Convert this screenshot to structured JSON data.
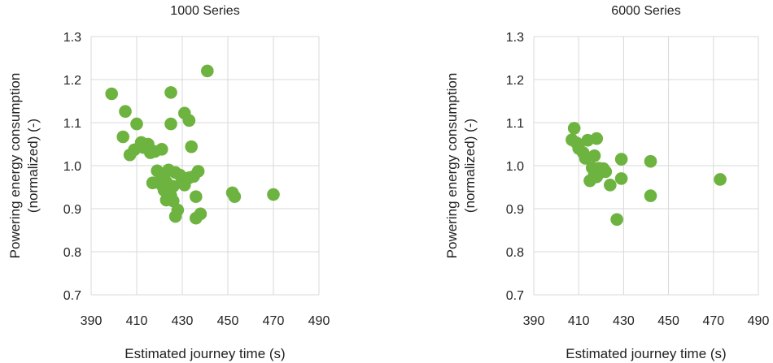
{
  "chart_data": [
    {
      "type": "scatter",
      "title": "1000 Series",
      "xlabel": "Estimated journey time (s)",
      "ylabel": [
        "Powering energy consumption",
        "(normalized) (-)"
      ],
      "xlim": [
        390,
        490
      ],
      "ylim": [
        0.7,
        1.3
      ],
      "xticks": [
        "390",
        "410",
        "430",
        "450",
        "470",
        "490"
      ],
      "yticks": [
        "0.7",
        "0.8",
        "0.9",
        "1.0",
        "1.1",
        "1.2",
        "1.3"
      ],
      "grid": true,
      "color": "#6db33f",
      "points": [
        [
          399,
          1.167
        ],
        [
          404,
          1.067
        ],
        [
          405,
          1.126
        ],
        [
          407,
          1.025
        ],
        [
          409,
          1.037
        ],
        [
          410,
          1.097
        ],
        [
          412,
          1.054
        ],
        [
          413,
          1.042
        ],
        [
          415,
          1.05
        ],
        [
          416,
          1.03
        ],
        [
          417,
          0.96
        ],
        [
          418,
          1.033
        ],
        [
          419,
          0.988
        ],
        [
          420,
          0.963
        ],
        [
          421,
          0.955
        ],
        [
          421,
          1.038
        ],
        [
          422,
          0.975
        ],
        [
          422,
          0.943
        ],
        [
          423,
          0.92
        ],
        [
          423,
          0.962
        ],
        [
          424,
          0.99
        ],
        [
          424,
          0.94
        ],
        [
          425,
          1.097
        ],
        [
          425,
          1.17
        ],
        [
          425,
          0.93
        ],
        [
          426,
          0.952
        ],
        [
          426,
          0.918
        ],
        [
          427,
          0.984
        ],
        [
          427,
          0.882
        ],
        [
          428,
          0.897
        ],
        [
          429,
          0.978
        ],
        [
          430,
          0.965
        ],
        [
          431,
          0.955
        ],
        [
          431,
          1.122
        ],
        [
          433,
          1.105
        ],
        [
          433,
          0.972
        ],
        [
          434,
          1.044
        ],
        [
          435,
          0.975
        ],
        [
          436,
          0.928
        ],
        [
          436,
          0.878
        ],
        [
          437,
          0.987
        ],
        [
          438,
          0.888
        ],
        [
          441,
          1.22
        ],
        [
          452,
          0.937
        ],
        [
          453,
          0.928
        ],
        [
          470,
          0.933
        ]
      ]
    },
    {
      "type": "scatter",
      "title": "6000 Series",
      "xlabel": "Estimated journey time (s)",
      "ylabel": [
        "Powering energy consumption",
        "(normalized) (-)"
      ],
      "xlim": [
        390,
        490
      ],
      "ylim": [
        0.7,
        1.3
      ],
      "xticks": [
        "390",
        "410",
        "430",
        "450",
        "470",
        "490"
      ],
      "yticks": [
        "0.7",
        "0.8",
        "0.9",
        "1.0",
        "1.1",
        "1.2",
        "1.3"
      ],
      "grid": true,
      "color": "#6db33f",
      "points": [
        [
          407,
          1.06
        ],
        [
          408,
          1.087
        ],
        [
          409,
          1.053
        ],
        [
          410,
          1.04
        ],
        [
          412,
          1.03
        ],
        [
          413,
          1.017
        ],
        [
          414,
          1.059
        ],
        [
          415,
          0.965
        ],
        [
          416,
          0.995
        ],
        [
          417,
          1.023
        ],
        [
          417,
          0.98
        ],
        [
          418,
          1.063
        ],
        [
          418,
          0.974
        ],
        [
          419,
          0.994
        ],
        [
          420,
          0.985
        ],
        [
          421,
          0.993
        ],
        [
          422,
          0.986
        ],
        [
          424,
          0.955
        ],
        [
          427,
          0.875
        ],
        [
          429,
          1.015
        ],
        [
          429,
          0.97
        ],
        [
          442,
          1.01
        ],
        [
          442,
          0.93
        ],
        [
          473,
          0.968
        ]
      ]
    }
  ]
}
